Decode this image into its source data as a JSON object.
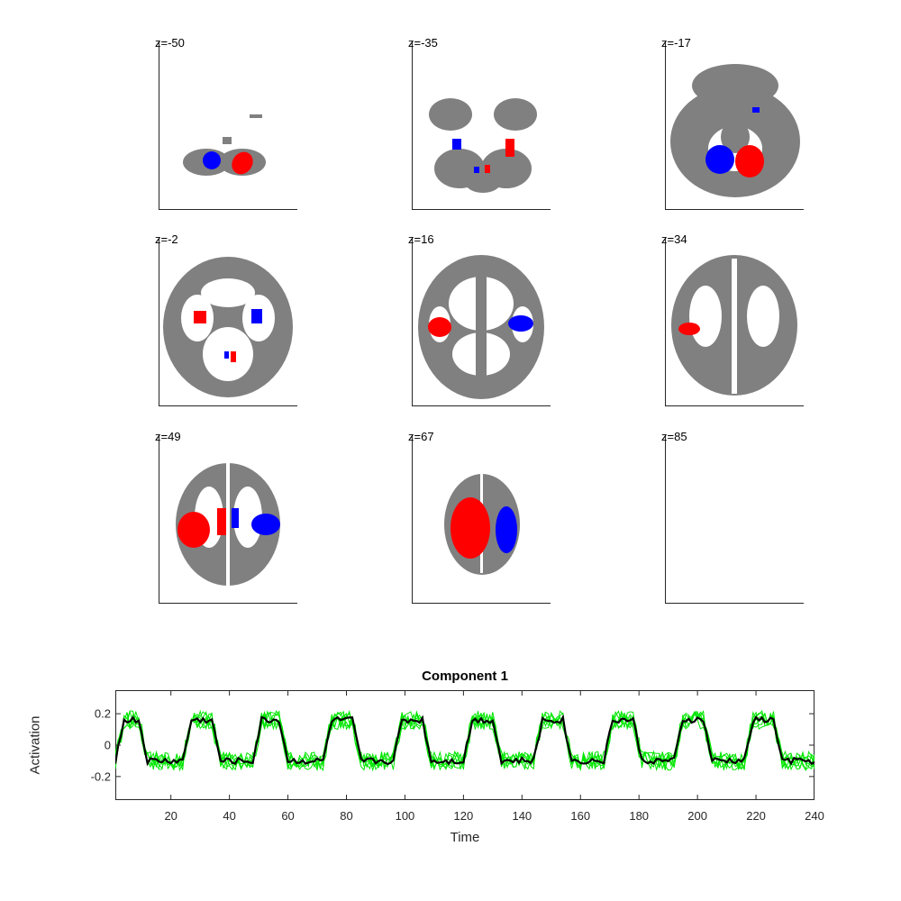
{
  "colors": {
    "brain": "#808080",
    "positive": "#ff0000",
    "negative": "#0000ff",
    "subject_series": "#00e600",
    "mean_series": "#000000"
  },
  "slices": [
    {
      "label": "z=-50"
    },
    {
      "label": "z=-35"
    },
    {
      "label": "z=-17"
    },
    {
      "label": "z=-2"
    },
    {
      "label": "z=16"
    },
    {
      "label": "z=34"
    },
    {
      "label": "z=49"
    },
    {
      "label": "z=67"
    },
    {
      "label": "z=85"
    }
  ],
  "chart_data": {
    "type": "line",
    "title": "Component 1",
    "xlabel": "Time",
    "ylabel": "Activation",
    "xlim": [
      1,
      240
    ],
    "ylim": [
      -0.35,
      0.35
    ],
    "xticks": [
      20,
      40,
      60,
      80,
      100,
      120,
      140,
      160,
      180,
      200,
      220,
      240
    ],
    "yticks": [
      0.2,
      0,
      -0.2
    ],
    "ytick_labels": [
      "0.2",
      "0",
      "-0.2"
    ],
    "block_period": 24,
    "blocks": [
      {
        "on_start": 4,
        "on_end": 9
      },
      {
        "on_start": 27,
        "on_end": 34
      },
      {
        "on_start": 51,
        "on_end": 57
      },
      {
        "on_start": 75,
        "on_end": 82
      },
      {
        "on_start": 99,
        "on_end": 106
      },
      {
        "on_start": 123,
        "on_end": 130
      },
      {
        "on_start": 147,
        "on_end": 154
      },
      {
        "on_start": 171,
        "on_end": 178
      },
      {
        "on_start": 195,
        "on_end": 202
      },
      {
        "on_start": 219,
        "on_end": 226
      }
    ],
    "mean_on_level": 0.16,
    "mean_off_level": -0.1,
    "subject_series_count": 6,
    "grid": false,
    "legend": "none"
  }
}
